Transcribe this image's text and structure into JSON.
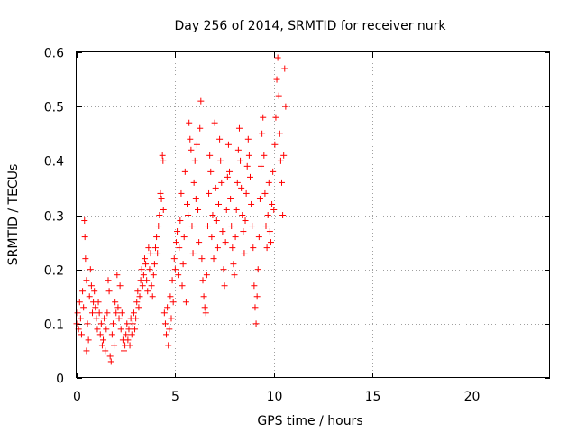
{
  "chart_data": {
    "type": "scatter",
    "title": "Day 256 of 2014, SRMTID for receiver nurk",
    "xlabel": "GPS time / hours",
    "ylabel": "SRMTID / TECUs",
    "xlim": [
      0,
      24
    ],
    "ylim": [
      0,
      0.6
    ],
    "xticks": [
      0,
      5,
      10,
      15,
      20
    ],
    "xtick_labels": [
      "0",
      "5",
      "10",
      "15",
      "20"
    ],
    "yticks": [
      0,
      0.1,
      0.2,
      0.3,
      0.4,
      0.5,
      0.6
    ],
    "ytick_labels": [
      "0",
      "0.1",
      "0.2",
      "0.3",
      "0.4",
      "0.5",
      "0.6"
    ],
    "grid": true,
    "marker": "+",
    "marker_color": "#ff0000",
    "series": [
      {
        "name": "SRMTID",
        "points": [
          [
            0.0,
            0.1
          ],
          [
            0.05,
            0.12
          ],
          [
            0.1,
            0.09
          ],
          [
            0.15,
            0.14
          ],
          [
            0.2,
            0.11
          ],
          [
            0.25,
            0.08
          ],
          [
            0.3,
            0.16
          ],
          [
            0.35,
            0.13
          ],
          [
            0.4,
            0.29
          ],
          [
            0.42,
            0.26
          ],
          [
            0.45,
            0.22
          ],
          [
            0.5,
            0.18
          ],
          [
            0.5,
            0.05
          ],
          [
            0.55,
            0.1
          ],
          [
            0.6,
            0.07
          ],
          [
            0.65,
            0.15
          ],
          [
            0.7,
            0.2
          ],
          [
            0.75,
            0.17
          ],
          [
            0.8,
            0.12
          ],
          [
            0.85,
            0.14
          ],
          [
            0.9,
            0.16
          ],
          [
            0.95,
            0.13
          ],
          [
            1.0,
            0.11
          ],
          [
            1.05,
            0.09
          ],
          [
            1.1,
            0.14
          ],
          [
            1.15,
            0.12
          ],
          [
            1.2,
            0.08
          ],
          [
            1.25,
            0.1
          ],
          [
            1.3,
            0.06
          ],
          [
            1.35,
            0.07
          ],
          [
            1.4,
            0.11
          ],
          [
            1.45,
            0.05
          ],
          [
            1.5,
            0.09
          ],
          [
            1.55,
            0.12
          ],
          [
            1.6,
            0.18
          ],
          [
            1.65,
            0.16
          ],
          [
            1.7,
            0.04
          ],
          [
            1.75,
            0.03
          ],
          [
            1.8,
            0.08
          ],
          [
            1.85,
            0.1
          ],
          [
            1.9,
            0.06
          ],
          [
            1.95,
            0.14
          ],
          [
            2.0,
            0.12
          ],
          [
            2.05,
            0.19
          ],
          [
            2.1,
            0.13
          ],
          [
            2.15,
            0.11
          ],
          [
            2.2,
            0.17
          ],
          [
            2.25,
            0.09
          ],
          [
            2.3,
            0.12
          ],
          [
            2.35,
            0.07
          ],
          [
            2.4,
            0.05
          ],
          [
            2.45,
            0.06
          ],
          [
            2.5,
            0.08
          ],
          [
            2.55,
            0.1
          ],
          [
            2.6,
            0.07
          ],
          [
            2.65,
            0.09
          ],
          [
            2.7,
            0.06
          ],
          [
            2.75,
            0.11
          ],
          [
            2.8,
            0.08
          ],
          [
            2.85,
            0.1
          ],
          [
            2.9,
            0.12
          ],
          [
            2.95,
            0.09
          ],
          [
            3.0,
            0.11
          ],
          [
            3.05,
            0.14
          ],
          [
            3.1,
            0.16
          ],
          [
            3.15,
            0.13
          ],
          [
            3.2,
            0.15
          ],
          [
            3.25,
            0.18
          ],
          [
            3.3,
            0.2
          ],
          [
            3.35,
            0.17
          ],
          [
            3.4,
            0.19
          ],
          [
            3.45,
            0.22
          ],
          [
            3.5,
            0.21
          ],
          [
            3.55,
            0.18
          ],
          [
            3.6,
            0.16
          ],
          [
            3.65,
            0.24
          ],
          [
            3.7,
            0.2
          ],
          [
            3.75,
            0.23
          ],
          [
            3.8,
            0.17
          ],
          [
            3.85,
            0.15
          ],
          [
            3.9,
            0.19
          ],
          [
            3.95,
            0.21
          ],
          [
            4.0,
            0.24
          ],
          [
            4.05,
            0.26
          ],
          [
            4.1,
            0.23
          ],
          [
            4.15,
            0.28
          ],
          [
            4.2,
            0.3
          ],
          [
            4.25,
            0.34
          ],
          [
            4.3,
            0.33
          ],
          [
            4.35,
            0.41
          ],
          [
            4.38,
            0.4
          ],
          [
            4.4,
            0.31
          ],
          [
            4.45,
            0.12
          ],
          [
            4.5,
            0.1
          ],
          [
            4.55,
            0.08
          ],
          [
            4.6,
            0.13
          ],
          [
            4.65,
            0.06
          ],
          [
            4.7,
            0.09
          ],
          [
            4.75,
            0.15
          ],
          [
            4.8,
            0.11
          ],
          [
            4.85,
            0.18
          ],
          [
            4.9,
            0.14
          ],
          [
            4.95,
            0.22
          ],
          [
            5.0,
            0.2
          ],
          [
            5.05,
            0.25
          ],
          [
            5.1,
            0.27
          ],
          [
            5.15,
            0.19
          ],
          [
            5.2,
            0.24
          ],
          [
            5.25,
            0.29
          ],
          [
            5.3,
            0.34
          ],
          [
            5.35,
            0.17
          ],
          [
            5.4,
            0.21
          ],
          [
            5.45,
            0.26
          ],
          [
            5.5,
            0.38
          ],
          [
            5.55,
            0.14
          ],
          [
            5.6,
            0.32
          ],
          [
            5.65,
            0.3
          ],
          [
            5.7,
            0.47
          ],
          [
            5.75,
            0.44
          ],
          [
            5.8,
            0.42
          ],
          [
            5.85,
            0.28
          ],
          [
            5.9,
            0.23
          ],
          [
            5.95,
            0.36
          ],
          [
            6.0,
            0.4
          ],
          [
            6.05,
            0.33
          ],
          [
            6.1,
            0.43
          ],
          [
            6.15,
            0.31
          ],
          [
            6.2,
            0.25
          ],
          [
            6.25,
            0.46
          ],
          [
            6.3,
            0.51
          ],
          [
            6.35,
            0.22
          ],
          [
            6.4,
            0.18
          ],
          [
            6.45,
            0.15
          ],
          [
            6.5,
            0.13
          ],
          [
            6.55,
            0.12
          ],
          [
            6.6,
            0.19
          ],
          [
            6.65,
            0.28
          ],
          [
            6.7,
            0.34
          ],
          [
            6.75,
            0.41
          ],
          [
            6.8,
            0.38
          ],
          [
            6.85,
            0.26
          ],
          [
            6.9,
            0.3
          ],
          [
            6.95,
            0.22
          ],
          [
            7.0,
            0.47
          ],
          [
            7.05,
            0.35
          ],
          [
            7.1,
            0.29
          ],
          [
            7.15,
            0.24
          ],
          [
            7.2,
            0.32
          ],
          [
            7.25,
            0.44
          ],
          [
            7.3,
            0.4
          ],
          [
            7.35,
            0.36
          ],
          [
            7.4,
            0.27
          ],
          [
            7.45,
            0.2
          ],
          [
            7.5,
            0.17
          ],
          [
            7.55,
            0.25
          ],
          [
            7.6,
            0.31
          ],
          [
            7.65,
            0.37
          ],
          [
            7.7,
            0.43
          ],
          [
            7.75,
            0.38
          ],
          [
            7.8,
            0.33
          ],
          [
            7.85,
            0.28
          ],
          [
            7.9,
            0.24
          ],
          [
            7.95,
            0.21
          ],
          [
            8.0,
            0.19
          ],
          [
            8.05,
            0.26
          ],
          [
            8.1,
            0.31
          ],
          [
            8.15,
            0.36
          ],
          [
            8.2,
            0.42
          ],
          [
            8.25,
            0.46
          ],
          [
            8.3,
            0.4
          ],
          [
            8.35,
            0.35
          ],
          [
            8.4,
            0.3
          ],
          [
            8.45,
            0.27
          ],
          [
            8.5,
            0.23
          ],
          [
            8.55,
            0.29
          ],
          [
            8.6,
            0.34
          ],
          [
            8.65,
            0.39
          ],
          [
            8.7,
            0.44
          ],
          [
            8.75,
            0.41
          ],
          [
            8.8,
            0.37
          ],
          [
            8.85,
            0.32
          ],
          [
            8.9,
            0.28
          ],
          [
            8.95,
            0.24
          ],
          [
            9.0,
            0.17
          ],
          [
            9.05,
            0.13
          ],
          [
            9.1,
            0.1
          ],
          [
            9.15,
            0.15
          ],
          [
            9.2,
            0.2
          ],
          [
            9.25,
            0.26
          ],
          [
            9.3,
            0.33
          ],
          [
            9.35,
            0.39
          ],
          [
            9.4,
            0.45
          ],
          [
            9.45,
            0.48
          ],
          [
            9.5,
            0.41
          ],
          [
            9.55,
            0.34
          ],
          [
            9.6,
            0.28
          ],
          [
            9.65,
            0.24
          ],
          [
            9.7,
            0.3
          ],
          [
            9.75,
            0.36
          ],
          [
            9.8,
            0.27
          ],
          [
            9.85,
            0.25
          ],
          [
            9.9,
            0.32
          ],
          [
            9.95,
            0.38
          ],
          [
            10.0,
            0.31
          ],
          [
            10.05,
            0.43
          ],
          [
            10.1,
            0.48
          ],
          [
            10.15,
            0.55
          ],
          [
            10.2,
            0.59
          ],
          [
            10.25,
            0.52
          ],
          [
            10.3,
            0.45
          ],
          [
            10.35,
            0.4
          ],
          [
            10.4,
            0.36
          ],
          [
            10.45,
            0.3
          ],
          [
            10.5,
            0.41
          ],
          [
            10.55,
            0.57
          ],
          [
            10.6,
            0.5
          ]
        ]
      }
    ]
  }
}
